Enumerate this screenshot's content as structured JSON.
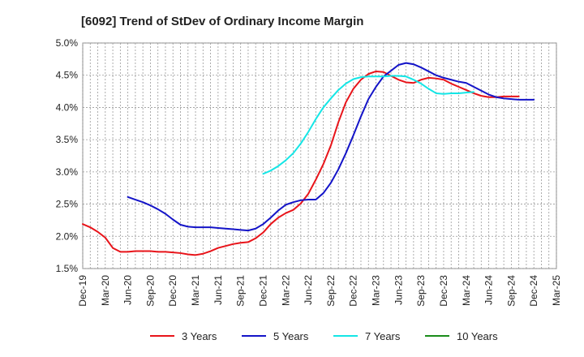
{
  "chart_data": {
    "type": "line",
    "title": "[6092]  Trend of StDev of Ordinary Income Margin",
    "xlabel": "",
    "ylabel": "",
    "ylim": [
      1.5,
      5.0
    ],
    "y_ticks": [
      "1.5%",
      "2.0%",
      "2.5%",
      "3.0%",
      "3.5%",
      "4.0%",
      "4.5%",
      "5.0%"
    ],
    "x_ticks": [
      "Dec-19",
      "Mar-20",
      "Jun-20",
      "Sep-20",
      "Dec-20",
      "Mar-21",
      "Jun-21",
      "Sep-21",
      "Dec-21",
      "Mar-22",
      "Jun-22",
      "Sep-22",
      "Dec-22",
      "Mar-23",
      "Jun-23",
      "Sep-23",
      "Dec-23",
      "Mar-24",
      "Jun-24",
      "Sep-24",
      "Dec-24",
      "Mar-25"
    ],
    "grid": true,
    "legend_position": "bottom",
    "series": [
      {
        "name": "3 Years",
        "color": "#e8141a",
        "points": [
          [
            0,
            2.19
          ],
          [
            1,
            2.14
          ],
          [
            2,
            2.07
          ],
          [
            3,
            1.98
          ],
          [
            4,
            1.82
          ],
          [
            5,
            1.76
          ],
          [
            6,
            1.76
          ],
          [
            7,
            1.77
          ],
          [
            8,
            1.77
          ],
          [
            9,
            1.77
          ],
          [
            10,
            1.76
          ],
          [
            11,
            1.76
          ],
          [
            12,
            1.75
          ],
          [
            13,
            1.74
          ],
          [
            14,
            1.72
          ],
          [
            15,
            1.71
          ],
          [
            16,
            1.73
          ],
          [
            17,
            1.77
          ],
          [
            18,
            1.82
          ],
          [
            19,
            1.85
          ],
          [
            20,
            1.88
          ],
          [
            21,
            1.9
          ],
          [
            22,
            1.91
          ],
          [
            23,
            1.97
          ],
          [
            24,
            2.06
          ],
          [
            25,
            2.19
          ],
          [
            26,
            2.29
          ],
          [
            27,
            2.36
          ],
          [
            28,
            2.41
          ],
          [
            29,
            2.51
          ],
          [
            30,
            2.66
          ],
          [
            31,
            2.88
          ],
          [
            32,
            3.12
          ],
          [
            33,
            3.41
          ],
          [
            34,
            3.77
          ],
          [
            35,
            4.08
          ],
          [
            36,
            4.29
          ],
          [
            37,
            4.43
          ],
          [
            38,
            4.52
          ],
          [
            39,
            4.56
          ],
          [
            40,
            4.55
          ],
          [
            41,
            4.49
          ],
          [
            42,
            4.43
          ],
          [
            43,
            4.39
          ],
          [
            44,
            4.38
          ],
          [
            45,
            4.43
          ],
          [
            46,
            4.46
          ],
          [
            47,
            4.45
          ],
          [
            48,
            4.43
          ],
          [
            49,
            4.37
          ],
          [
            50,
            4.32
          ],
          [
            51,
            4.27
          ],
          [
            52,
            4.22
          ],
          [
            53,
            4.18
          ],
          [
            54,
            4.16
          ],
          [
            55,
            4.16
          ],
          [
            56,
            4.17
          ],
          [
            57,
            4.17
          ],
          [
            58,
            4.17
          ]
        ]
      },
      {
        "name": "5 Years",
        "color": "#1414c8",
        "points": [
          [
            6,
            2.61
          ],
          [
            7,
            2.57
          ],
          [
            8,
            2.53
          ],
          [
            9,
            2.48
          ],
          [
            10,
            2.42
          ],
          [
            11,
            2.35
          ],
          [
            12,
            2.26
          ],
          [
            13,
            2.18
          ],
          [
            14,
            2.15
          ],
          [
            15,
            2.14
          ],
          [
            16,
            2.14
          ],
          [
            17,
            2.14
          ],
          [
            18,
            2.13
          ],
          [
            19,
            2.12
          ],
          [
            20,
            2.11
          ],
          [
            21,
            2.1
          ],
          [
            22,
            2.09
          ],
          [
            23,
            2.12
          ],
          [
            24,
            2.19
          ],
          [
            25,
            2.29
          ],
          [
            26,
            2.4
          ],
          [
            27,
            2.49
          ],
          [
            28,
            2.53
          ],
          [
            29,
            2.56
          ],
          [
            30,
            2.57
          ],
          [
            31,
            2.57
          ],
          [
            32,
            2.67
          ],
          [
            33,
            2.83
          ],
          [
            34,
            3.04
          ],
          [
            35,
            3.29
          ],
          [
            36,
            3.57
          ],
          [
            37,
            3.86
          ],
          [
            38,
            4.13
          ],
          [
            39,
            4.32
          ],
          [
            40,
            4.48
          ],
          [
            41,
            4.57
          ],
          [
            42,
            4.66
          ],
          [
            43,
            4.69
          ],
          [
            44,
            4.67
          ],
          [
            45,
            4.62
          ],
          [
            46,
            4.56
          ],
          [
            47,
            4.5
          ],
          [
            48,
            4.46
          ],
          [
            49,
            4.43
          ],
          [
            50,
            4.4
          ],
          [
            51,
            4.38
          ],
          [
            52,
            4.32
          ],
          [
            53,
            4.26
          ],
          [
            54,
            4.2
          ],
          [
            55,
            4.16
          ],
          [
            56,
            4.14
          ],
          [
            57,
            4.13
          ],
          [
            58,
            4.12
          ],
          [
            59,
            4.12
          ],
          [
            60,
            4.12
          ]
        ]
      },
      {
        "name": "7 Years",
        "color": "#14e6e6",
        "points": [
          [
            24,
            2.97
          ],
          [
            25,
            3.02
          ],
          [
            26,
            3.09
          ],
          [
            27,
            3.18
          ],
          [
            28,
            3.29
          ],
          [
            29,
            3.44
          ],
          [
            30,
            3.62
          ],
          [
            31,
            3.82
          ],
          [
            32,
            4.0
          ],
          [
            33,
            4.14
          ],
          [
            34,
            4.27
          ],
          [
            35,
            4.37
          ],
          [
            36,
            4.44
          ],
          [
            37,
            4.47
          ],
          [
            38,
            4.48
          ],
          [
            39,
            4.48
          ],
          [
            40,
            4.48
          ],
          [
            41,
            4.49
          ],
          [
            42,
            4.49
          ],
          [
            43,
            4.48
          ],
          [
            44,
            4.43
          ],
          [
            45,
            4.37
          ],
          [
            46,
            4.29
          ],
          [
            47,
            4.22
          ],
          [
            48,
            4.21
          ],
          [
            49,
            4.22
          ],
          [
            50,
            4.22
          ],
          [
            51,
            4.23
          ],
          [
            52,
            4.24
          ]
        ]
      },
      {
        "name": "10 Years",
        "color": "#1a8c1a",
        "points": []
      }
    ]
  }
}
